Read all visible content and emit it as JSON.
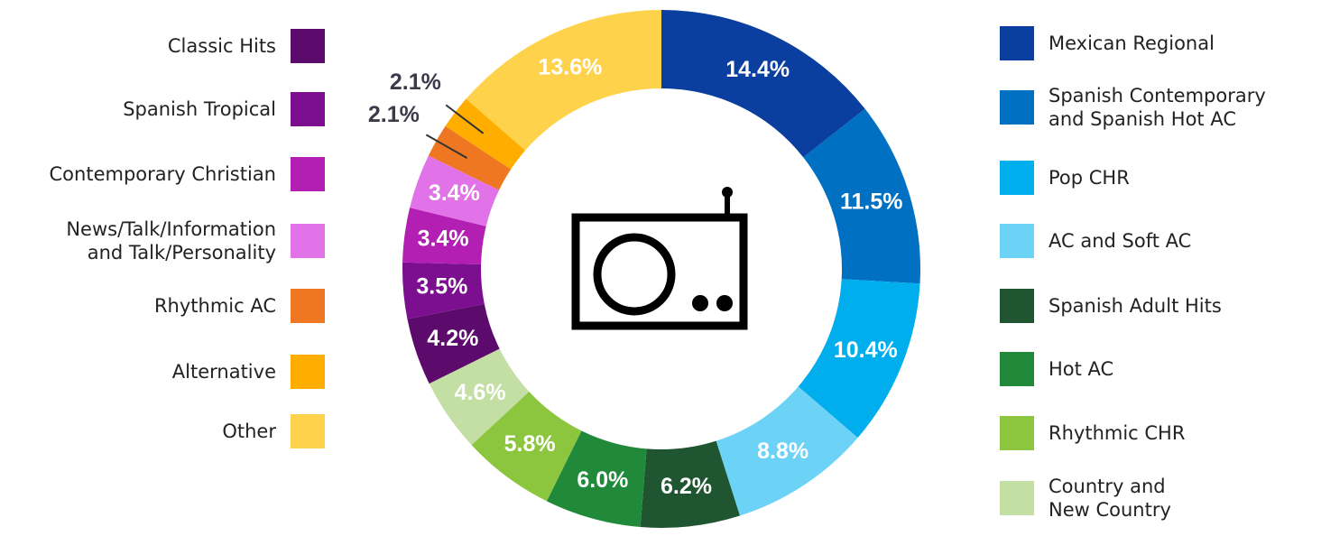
{
  "chart_data": {
    "type": "donut",
    "series": [
      {
        "name": "Mexican Regional",
        "color": "#0b3f9f",
        "values": [
          14.4
        ],
        "value_labels": [
          "14.4%"
        ]
      },
      {
        "name": "Spanish Contemporary\nand Spanish Hot AC",
        "color": "#0070c2",
        "values": [
          11.5
        ],
        "value_labels": [
          "11.5%"
        ]
      },
      {
        "name": "Pop CHR",
        "color": "#00aeee",
        "values": [
          10.4
        ],
        "value_labels": [
          "10.4%"
        ]
      },
      {
        "name": "AC and Soft AC",
        "color": "#6cd3f7",
        "values": [
          8.8
        ],
        "value_labels": [
          "8.8%"
        ]
      },
      {
        "name": "Spanish Adult Hits",
        "color": "#1f5530",
        "values": [
          6.2
        ],
        "value_labels": [
          "6.2%"
        ]
      },
      {
        "name": "Hot AC",
        "color": "#218a3a",
        "values": [
          6.0
        ],
        "value_labels": [
          "6.0%"
        ]
      },
      {
        "name": "Rhythmic CHR",
        "color": "#8cc63f",
        "values": [
          5.8
        ],
        "value_labels": [
          "5.8%"
        ]
      },
      {
        "name": "Country and\nNew Country",
        "color": "#c4dfa4",
        "values": [
          4.6
        ],
        "value_labels": [
          "4.6%"
        ]
      },
      {
        "name": "Classic Hits",
        "color": "#5c0b6c",
        "values": [
          4.2
        ],
        "value_labels": [
          "4.2%"
        ]
      },
      {
        "name": "Spanish Tropical",
        "color": "#7c0f90",
        "values": [
          3.5
        ],
        "value_labels": [
          "3.5%"
        ]
      },
      {
        "name": "Contemporary Christian",
        "color": "#b21fb2",
        "values": [
          3.4
        ],
        "value_labels": [
          "3.4%"
        ]
      },
      {
        "name": "News/Talk/Information\nand Talk/Personality",
        "color": "#e172e8",
        "values": [
          3.4
        ],
        "value_labels": [
          "3.4%"
        ]
      },
      {
        "name": "Rhythmic AC",
        "color": "#ef7721",
        "values": [
          2.1
        ],
        "value_labels": [
          "2.1%"
        ]
      },
      {
        "name": "Alternative",
        "color": "#ffae00",
        "values": [
          2.1
        ],
        "value_labels": [
          "2.1%"
        ]
      },
      {
        "name": "Other",
        "color": "#ffd24b",
        "values": [
          13.6
        ],
        "value_labels": [
          "13.6%"
        ]
      }
    ]
  }
}
